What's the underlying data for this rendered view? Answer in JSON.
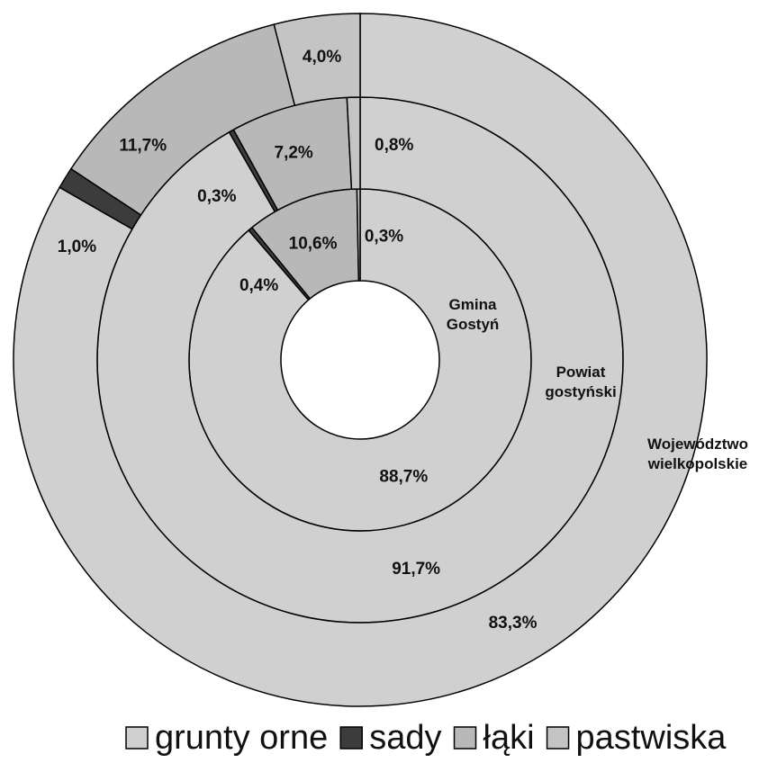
{
  "chart_data": {
    "type": "donut",
    "categories": [
      "grunty orne",
      "sady",
      "łąki",
      "pastwiska"
    ],
    "colors": [
      "#d0d0d0",
      "#3c3c3c",
      "#b8b8b8",
      "#c4c4c4"
    ],
    "series": [
      {
        "name": "Gmina Gostyń",
        "values": [
          88.7,
          0.4,
          10.6,
          0.3
        ],
        "value_labels": [
          "88,7%",
          "0,4%",
          "10,6%",
          "0,3%"
        ]
      },
      {
        "name": "Powiat gostyński",
        "values": [
          91.7,
          0.3,
          7.2,
          0.8
        ],
        "value_labels": [
          "91,7%",
          "0,3%",
          "7,2%",
          "0,8%"
        ]
      },
      {
        "name": "Województwo wielkopolskie",
        "values": [
          83.3,
          1.0,
          11.7,
          4.0
        ],
        "value_labels": [
          "83,3%",
          "1,0%",
          "11,7%",
          "4,0%"
        ]
      }
    ],
    "legend": "bottom"
  }
}
